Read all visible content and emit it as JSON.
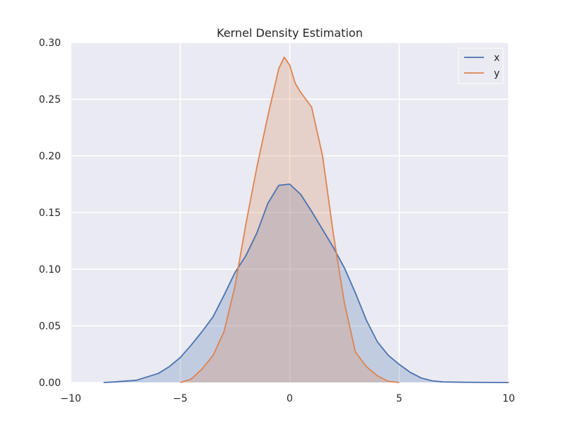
{
  "chart_data": {
    "type": "area",
    "title": "Kernel Density Estimation",
    "xlabel": "",
    "ylabel": "",
    "xlim": [
      -10,
      10
    ],
    "ylim": [
      0,
      0.3
    ],
    "xticks": [
      -10,
      -5,
      0,
      5,
      10
    ],
    "xtick_labels": [
      "−10",
      "−5",
      "0",
      "5",
      "10"
    ],
    "yticks": [
      0,
      0.05,
      0.1,
      0.15,
      0.2,
      0.25,
      0.3
    ],
    "ytick_labels": [
      "0.00",
      "0.05",
      "0.10",
      "0.15",
      "0.20",
      "0.25",
      "0.30"
    ],
    "grid": true,
    "legend": "top-right",
    "series": [
      {
        "name": "x",
        "color": "#4c72b0",
        "points": [
          [
            -8.5,
            0.0
          ],
          [
            -8,
            0.0005
          ],
          [
            -7,
            0.002
          ],
          [
            -6,
            0.008
          ],
          [
            -5.5,
            0.014
          ],
          [
            -5,
            0.022
          ],
          [
            -4.5,
            0.033
          ],
          [
            -4,
            0.045
          ],
          [
            -3.5,
            0.058
          ],
          [
            -3,
            0.077
          ],
          [
            -2.5,
            0.097
          ],
          [
            -2,
            0.112
          ],
          [
            -1.5,
            0.132
          ],
          [
            -1,
            0.158
          ],
          [
            -0.5,
            0.174
          ],
          [
            0,
            0.175
          ],
          [
            0.5,
            0.166
          ],
          [
            1,
            0.151
          ],
          [
            1.5,
            0.135
          ],
          [
            2,
            0.119
          ],
          [
            2.5,
            0.101
          ],
          [
            3,
            0.079
          ],
          [
            3.5,
            0.055
          ],
          [
            4,
            0.036
          ],
          [
            4.5,
            0.024
          ],
          [
            5,
            0.016
          ],
          [
            5.5,
            0.009
          ],
          [
            6,
            0.004
          ],
          [
            6.5,
            0.0015
          ],
          [
            7,
            0.0005
          ],
          [
            8,
            0.0002
          ],
          [
            9,
            0.0001
          ],
          [
            10,
            0.0
          ]
        ]
      },
      {
        "name": "y",
        "color": "#dd8452",
        "points": [
          [
            -5,
            0.0
          ],
          [
            -4.5,
            0.003
          ],
          [
            -4,
            0.012
          ],
          [
            -3.5,
            0.024
          ],
          [
            -3,
            0.045
          ],
          [
            -2.5,
            0.085
          ],
          [
            -2,
            0.14
          ],
          [
            -1.5,
            0.19
          ],
          [
            -1,
            0.235
          ],
          [
            -0.5,
            0.277
          ],
          [
            -0.25,
            0.287
          ],
          [
            0,
            0.28
          ],
          [
            0.25,
            0.264
          ],
          [
            0.5,
            0.256
          ],
          [
            1,
            0.243
          ],
          [
            1.5,
            0.2
          ],
          [
            2,
            0.13
          ],
          [
            2.5,
            0.07
          ],
          [
            3,
            0.027
          ],
          [
            3.5,
            0.014
          ],
          [
            4,
            0.006
          ],
          [
            4.5,
            0.001
          ],
          [
            5,
            0.0
          ]
        ]
      }
    ]
  }
}
